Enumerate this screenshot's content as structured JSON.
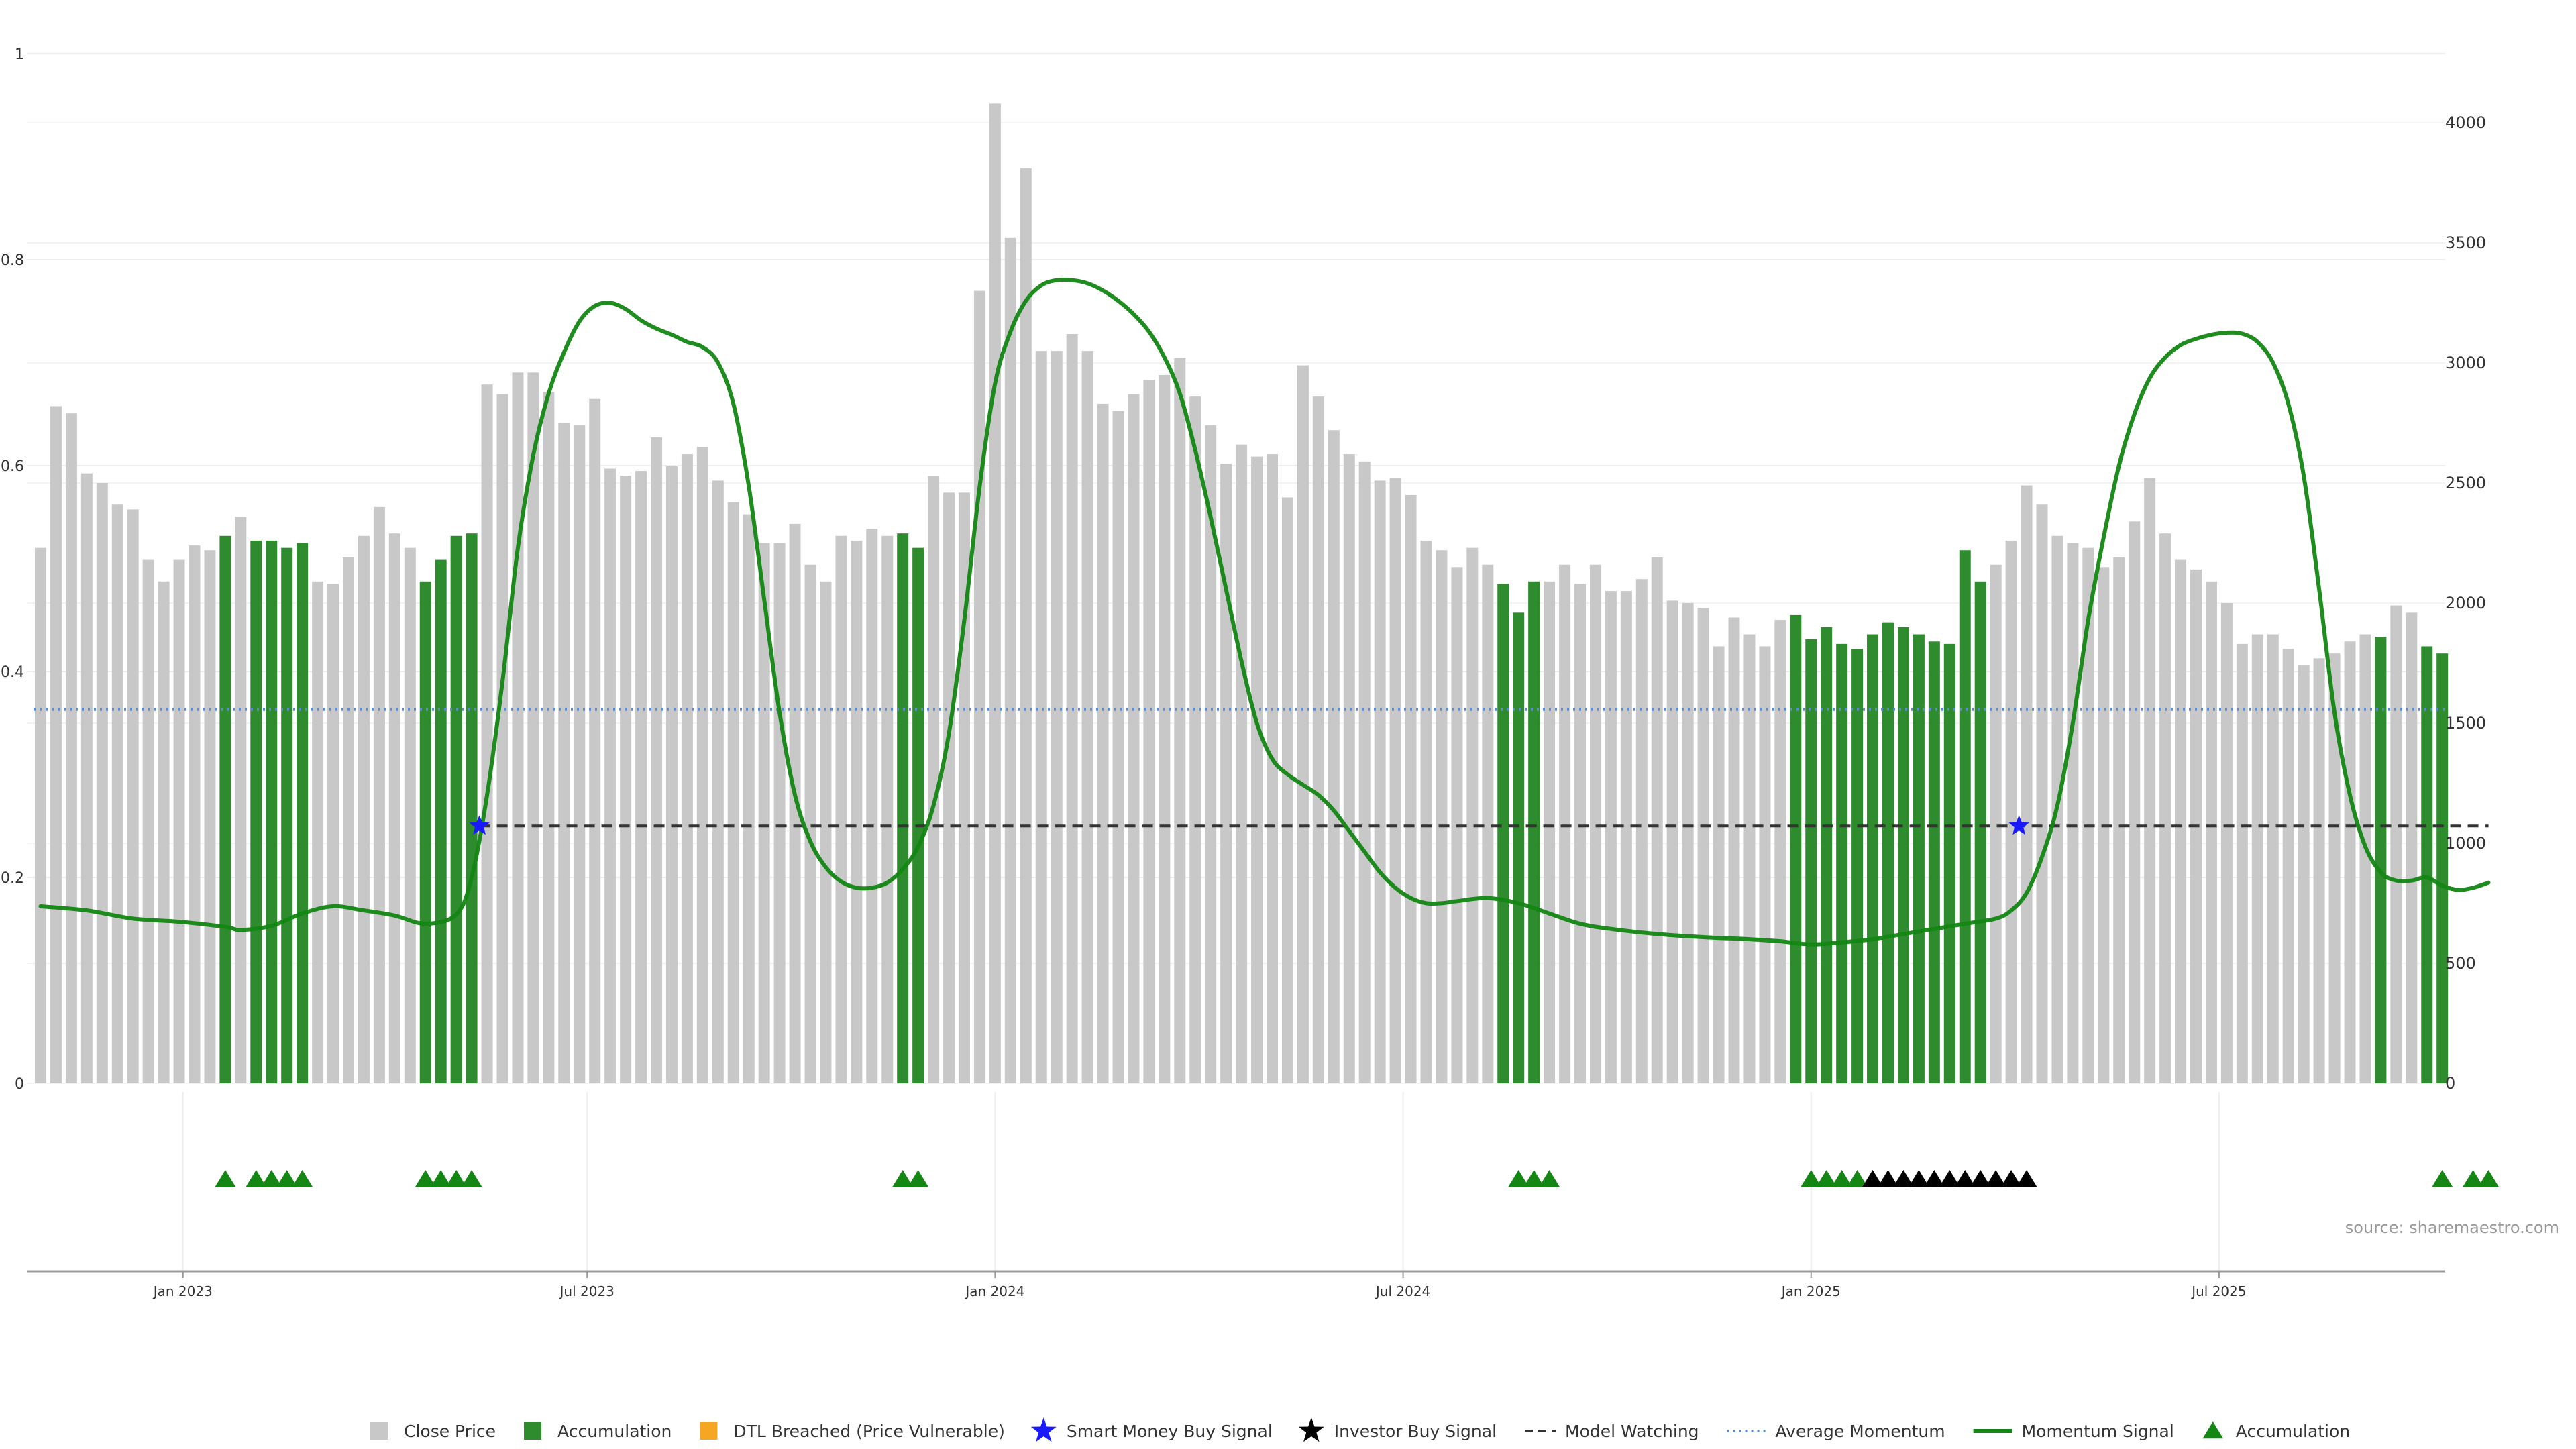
{
  "chart_data": {
    "type": "bar",
    "source_label": "source: sharemaestro.com",
    "colors": {
      "close_price": "#c8c8c8",
      "accumulation": "#2e8b2e",
      "dtl": "#f5a623",
      "smart_money": "#1a1aff",
      "investor": "#000000",
      "model_watching": "#333333",
      "avg_momentum": "#5b8bd0",
      "momentum": "#138613",
      "acc_marker": "#138613"
    },
    "left_axis": {
      "ylim": [
        0,
        1
      ],
      "ticks": [
        "0",
        "0.2",
        "0.4",
        "0.6",
        "0.8",
        "1"
      ]
    },
    "right_axis": {
      "ylim": [
        0,
        4300
      ],
      "ticks": [
        "0",
        "500",
        "1000",
        "1500",
        "2000",
        "2500",
        "3000",
        "3500",
        "4000"
      ]
    },
    "x_ticks": [
      "Jan 2023",
      "Jul 2023",
      "Jan 2024",
      "Jul 2024",
      "Jan 2025",
      "Jul 2025"
    ],
    "legend": [
      {
        "label": "Close Price",
        "symbol": "square",
        "color": "#c8c8c8"
      },
      {
        "label": "Accumulation",
        "symbol": "square",
        "color": "#2e8b2e"
      },
      {
        "label": "DTL Breached (Price Vulnerable)",
        "symbol": "square",
        "color": "#f5a623"
      },
      {
        "label": "Smart Money Buy Signal",
        "symbol": "star",
        "color": "#1a1aff"
      },
      {
        "label": "Investor Buy Signal",
        "symbol": "star",
        "color": "#000000"
      },
      {
        "label": "Model Watching",
        "symbol": "dash",
        "color": "#333333"
      },
      {
        "label": "Average Momentum",
        "symbol": "dot",
        "color": "#5b8bd0"
      },
      {
        "label": "Momentum Signal",
        "symbol": "line",
        "color": "#138613"
      },
      {
        "label": "Accumulation",
        "symbol": "triangle",
        "color": "#138613"
      }
    ],
    "bars": [
      {
        "v": 2230,
        "acc": false
      },
      {
        "v": 2820,
        "acc": false
      },
      {
        "v": 2790,
        "acc": false
      },
      {
        "v": 2540,
        "acc": false
      },
      {
        "v": 2500,
        "acc": false
      },
      {
        "v": 2410,
        "acc": false
      },
      {
        "v": 2390,
        "acc": false
      },
      {
        "v": 2180,
        "acc": false
      },
      {
        "v": 2090,
        "acc": false
      },
      {
        "v": 2180,
        "acc": false
      },
      {
        "v": 2240,
        "acc": false
      },
      {
        "v": 2220,
        "acc": false
      },
      {
        "v": 2280,
        "acc": true
      },
      {
        "v": 2360,
        "acc": false
      },
      {
        "v": 2260,
        "acc": true
      },
      {
        "v": 2260,
        "acc": true
      },
      {
        "v": 2230,
        "acc": true
      },
      {
        "v": 2250,
        "acc": true
      },
      {
        "v": 2090,
        "acc": false
      },
      {
        "v": 2080,
        "acc": false
      },
      {
        "v": 2190,
        "acc": false
      },
      {
        "v": 2280,
        "acc": false
      },
      {
        "v": 2400,
        "acc": false
      },
      {
        "v": 2290,
        "acc": false
      },
      {
        "v": 2230,
        "acc": false
      },
      {
        "v": 2090,
        "acc": true
      },
      {
        "v": 2180,
        "acc": true
      },
      {
        "v": 2280,
        "acc": true
      },
      {
        "v": 2290,
        "acc": true
      },
      {
        "v": 2910,
        "acc": false
      },
      {
        "v": 2870,
        "acc": false
      },
      {
        "v": 2960,
        "acc": false
      },
      {
        "v": 2960,
        "acc": false
      },
      {
        "v": 2880,
        "acc": false
      },
      {
        "v": 2750,
        "acc": false
      },
      {
        "v": 2740,
        "acc": false
      },
      {
        "v": 2850,
        "acc": false
      },
      {
        "v": 2560,
        "acc": false
      },
      {
        "v": 2530,
        "acc": false
      },
      {
        "v": 2550,
        "acc": false
      },
      {
        "v": 2690,
        "acc": false
      },
      {
        "v": 2570,
        "acc": false
      },
      {
        "v": 2620,
        "acc": false
      },
      {
        "v": 2650,
        "acc": false
      },
      {
        "v": 2510,
        "acc": false
      },
      {
        "v": 2420,
        "acc": false
      },
      {
        "v": 2370,
        "acc": false
      },
      {
        "v": 2250,
        "acc": false
      },
      {
        "v": 2250,
        "acc": false
      },
      {
        "v": 2330,
        "acc": false
      },
      {
        "v": 2160,
        "acc": false
      },
      {
        "v": 2090,
        "acc": false
      },
      {
        "v": 2280,
        "acc": false
      },
      {
        "v": 2260,
        "acc": false
      },
      {
        "v": 2310,
        "acc": false
      },
      {
        "v": 2280,
        "acc": false
      },
      {
        "v": 2290,
        "acc": true
      },
      {
        "v": 2230,
        "acc": true
      },
      {
        "v": 2530,
        "acc": false
      },
      {
        "v": 2460,
        "acc": false
      },
      {
        "v": 2460,
        "acc": false
      },
      {
        "v": 3300,
        "acc": false
      },
      {
        "v": 4080,
        "acc": false
      },
      {
        "v": 3520,
        "acc": false
      },
      {
        "v": 3810,
        "acc": false
      },
      {
        "v": 3050,
        "acc": false
      },
      {
        "v": 3050,
        "acc": false
      },
      {
        "v": 3120,
        "acc": false
      },
      {
        "v": 3050,
        "acc": false
      },
      {
        "v": 2830,
        "acc": false
      },
      {
        "v": 2800,
        "acc": false
      },
      {
        "v": 2870,
        "acc": false
      },
      {
        "v": 2930,
        "acc": false
      },
      {
        "v": 2950,
        "acc": false
      },
      {
        "v": 3020,
        "acc": false
      },
      {
        "v": 2860,
        "acc": false
      },
      {
        "v": 2740,
        "acc": false
      },
      {
        "v": 2580,
        "acc": false
      },
      {
        "v": 2660,
        "acc": false
      },
      {
        "v": 2610,
        "acc": false
      },
      {
        "v": 2620,
        "acc": false
      },
      {
        "v": 2440,
        "acc": false
      },
      {
        "v": 2990,
        "acc": false
      },
      {
        "v": 2860,
        "acc": false
      },
      {
        "v": 2720,
        "acc": false
      },
      {
        "v": 2620,
        "acc": false
      },
      {
        "v": 2590,
        "acc": false
      },
      {
        "v": 2510,
        "acc": false
      },
      {
        "v": 2520,
        "acc": false
      },
      {
        "v": 2450,
        "acc": false
      },
      {
        "v": 2260,
        "acc": false
      },
      {
        "v": 2220,
        "acc": false
      },
      {
        "v": 2150,
        "acc": false
      },
      {
        "v": 2230,
        "acc": false
      },
      {
        "v": 2160,
        "acc": false
      },
      {
        "v": 2080,
        "acc": true
      },
      {
        "v": 1960,
        "acc": true
      },
      {
        "v": 2090,
        "acc": true
      },
      {
        "v": 2090,
        "acc": false
      },
      {
        "v": 2160,
        "acc": false
      },
      {
        "v": 2080,
        "acc": false
      },
      {
        "v": 2160,
        "acc": false
      },
      {
        "v": 2050,
        "acc": false
      },
      {
        "v": 2050,
        "acc": false
      },
      {
        "v": 2100,
        "acc": false
      },
      {
        "v": 2190,
        "acc": false
      },
      {
        "v": 2010,
        "acc": false
      },
      {
        "v": 2000,
        "acc": false
      },
      {
        "v": 1980,
        "acc": false
      },
      {
        "v": 1820,
        "acc": false
      },
      {
        "v": 1940,
        "acc": false
      },
      {
        "v": 1870,
        "acc": false
      },
      {
        "v": 1820,
        "acc": false
      },
      {
        "v": 1930,
        "acc": false
      },
      {
        "v": 1950,
        "acc": true
      },
      {
        "v": 1850,
        "acc": true
      },
      {
        "v": 1900,
        "acc": true
      },
      {
        "v": 1830,
        "acc": true
      },
      {
        "v": 1810,
        "acc": true
      },
      {
        "v": 1870,
        "acc": true
      },
      {
        "v": 1920,
        "acc": true
      },
      {
        "v": 1900,
        "acc": true
      },
      {
        "v": 1870,
        "acc": true
      },
      {
        "v": 1840,
        "acc": true
      },
      {
        "v": 1830,
        "acc": true
      },
      {
        "v": 2220,
        "acc": true
      },
      {
        "v": 2090,
        "acc": true
      },
      {
        "v": 2160,
        "acc": false
      },
      {
        "v": 2260,
        "acc": false
      },
      {
        "v": 2490,
        "acc": false
      },
      {
        "v": 2410,
        "acc": false
      },
      {
        "v": 2280,
        "acc": false
      },
      {
        "v": 2250,
        "acc": false
      },
      {
        "v": 2230,
        "acc": false
      },
      {
        "v": 2150,
        "acc": false
      },
      {
        "v": 2190,
        "acc": false
      },
      {
        "v": 2340,
        "acc": false
      },
      {
        "v": 2520,
        "acc": false
      },
      {
        "v": 2290,
        "acc": false
      },
      {
        "v": 2180,
        "acc": false
      },
      {
        "v": 2140,
        "acc": false
      },
      {
        "v": 2090,
        "acc": false
      },
      {
        "v": 2000,
        "acc": false
      },
      {
        "v": 1830,
        "acc": false
      },
      {
        "v": 1870,
        "acc": false
      },
      {
        "v": 1870,
        "acc": false
      },
      {
        "v": 1810,
        "acc": false
      },
      {
        "v": 1740,
        "acc": false
      },
      {
        "v": 1770,
        "acc": false
      },
      {
        "v": 1790,
        "acc": false
      },
      {
        "v": 1840,
        "acc": false
      },
      {
        "v": 1870,
        "acc": false
      },
      {
        "v": 1860,
        "acc": true
      },
      {
        "v": 1990,
        "acc": false
      },
      {
        "v": 1960,
        "acc": false
      },
      {
        "v": 1820,
        "acc": true
      },
      {
        "v": 1790,
        "acc": true
      }
    ],
    "momentum": [
      [
        0,
        0.172
      ],
      [
        3,
        0.168
      ],
      [
        6,
        0.16
      ],
      [
        9,
        0.157
      ],
      [
        12,
        0.152
      ],
      [
        13,
        0.149
      ],
      [
        15,
        0.153
      ],
      [
        17,
        0.165
      ],
      [
        19,
        0.172
      ],
      [
        21,
        0.168
      ],
      [
        23,
        0.163
      ],
      [
        25,
        0.155
      ],
      [
        27,
        0.164
      ],
      [
        28,
        0.2
      ],
      [
        29,
        0.28
      ],
      [
        30,
        0.39
      ],
      [
        31,
        0.52
      ],
      [
        32,
        0.61
      ],
      [
        33,
        0.67
      ],
      [
        34,
        0.71
      ],
      [
        35,
        0.74
      ],
      [
        36,
        0.755
      ],
      [
        37,
        0.758
      ],
      [
        38,
        0.752
      ],
      [
        39,
        0.741
      ],
      [
        40,
        0.733
      ],
      [
        41,
        0.727
      ],
      [
        42,
        0.72
      ],
      [
        43,
        0.715
      ],
      [
        44,
        0.7
      ],
      [
        45,
        0.66
      ],
      [
        46,
        0.58
      ],
      [
        47,
        0.47
      ],
      [
        48,
        0.36
      ],
      [
        49,
        0.28
      ],
      [
        50,
        0.235
      ],
      [
        51,
        0.21
      ],
      [
        52,
        0.196
      ],
      [
        53,
        0.19
      ],
      [
        54,
        0.19
      ],
      [
        55,
        0.195
      ],
      [
        56,
        0.208
      ],
      [
        57,
        0.23
      ],
      [
        58,
        0.27
      ],
      [
        59,
        0.34
      ],
      [
        60,
        0.45
      ],
      [
        61,
        0.58
      ],
      [
        62,
        0.68
      ],
      [
        63,
        0.73
      ],
      [
        64,
        0.76
      ],
      [
        65,
        0.775
      ],
      [
        66,
        0.78
      ],
      [
        67,
        0.78
      ],
      [
        68,
        0.777
      ],
      [
        69,
        0.77
      ],
      [
        70,
        0.76
      ],
      [
        71,
        0.747
      ],
      [
        72,
        0.73
      ],
      [
        73,
        0.705
      ],
      [
        74,
        0.67
      ],
      [
        75,
        0.615
      ],
      [
        76,
        0.55
      ],
      [
        77,
        0.48
      ],
      [
        78,
        0.41
      ],
      [
        79,
        0.35
      ],
      [
        80,
        0.315
      ],
      [
        81,
        0.3
      ],
      [
        82,
        0.29
      ],
      [
        83,
        0.28
      ],
      [
        84,
        0.265
      ],
      [
        85,
        0.245
      ],
      [
        86,
        0.225
      ],
      [
        87,
        0.205
      ],
      [
        88,
        0.19
      ],
      [
        89,
        0.18
      ],
      [
        90,
        0.175
      ],
      [
        91,
        0.175
      ],
      [
        92,
        0.177
      ],
      [
        94,
        0.18
      ],
      [
        96,
        0.175
      ],
      [
        98,
        0.165
      ],
      [
        100,
        0.155
      ],
      [
        102,
        0.15
      ],
      [
        105,
        0.145
      ],
      [
        108,
        0.142
      ],
      [
        111,
        0.14
      ],
      [
        113,
        0.138
      ],
      [
        115,
        0.135
      ],
      [
        117,
        0.137
      ],
      [
        119,
        0.14
      ],
      [
        121,
        0.145
      ],
      [
        123,
        0.15
      ],
      [
        125,
        0.155
      ],
      [
        127,
        0.16
      ],
      [
        128,
        0.168
      ],
      [
        129,
        0.185
      ],
      [
        130,
        0.22
      ],
      [
        131,
        0.27
      ],
      [
        132,
        0.35
      ],
      [
        133,
        0.45
      ],
      [
        134,
        0.53
      ],
      [
        135,
        0.6
      ],
      [
        136,
        0.65
      ],
      [
        137,
        0.685
      ],
      [
        138,
        0.705
      ],
      [
        139,
        0.717
      ],
      [
        140,
        0.723
      ],
      [
        141,
        0.727
      ],
      [
        142,
        0.729
      ],
      [
        143,
        0.728
      ],
      [
        144,
        0.72
      ],
      [
        145,
        0.7
      ],
      [
        146,
        0.66
      ],
      [
        147,
        0.59
      ],
      [
        148,
        0.48
      ],
      [
        149,
        0.36
      ],
      [
        150,
        0.28
      ],
      [
        151,
        0.23
      ],
      [
        152,
        0.205
      ],
      [
        153,
        0.197
      ],
      [
        154,
        0.197
      ],
      [
        155,
        0.2
      ],
      [
        156,
        0.192
      ],
      [
        157,
        0.188
      ],
      [
        158,
        0.19
      ],
      [
        159,
        0.195
      ]
    ],
    "average_momentum": 0.363,
    "model_watching": {
      "level": 0.25,
      "start_bar": 28.5,
      "end_bar": 159
    },
    "smart_money_signals": [
      {
        "bar": 28.5,
        "y": 0.25
      },
      {
        "bar": 128.5,
        "y": 0.25
      }
    ],
    "accumulation_markers": [
      12,
      14,
      15,
      16,
      17,
      25,
      26,
      27,
      28,
      56,
      57,
      96,
      97,
      98,
      115,
      116,
      117,
      118,
      156,
      158,
      159
    ],
    "investor_markers": [
      119,
      120,
      121,
      122,
      123,
      124,
      125,
      126,
      127,
      128,
      129
    ],
    "x_tick_positions": [
      9.25,
      35.5,
      62,
      88.5,
      115,
      141.5
    ]
  }
}
